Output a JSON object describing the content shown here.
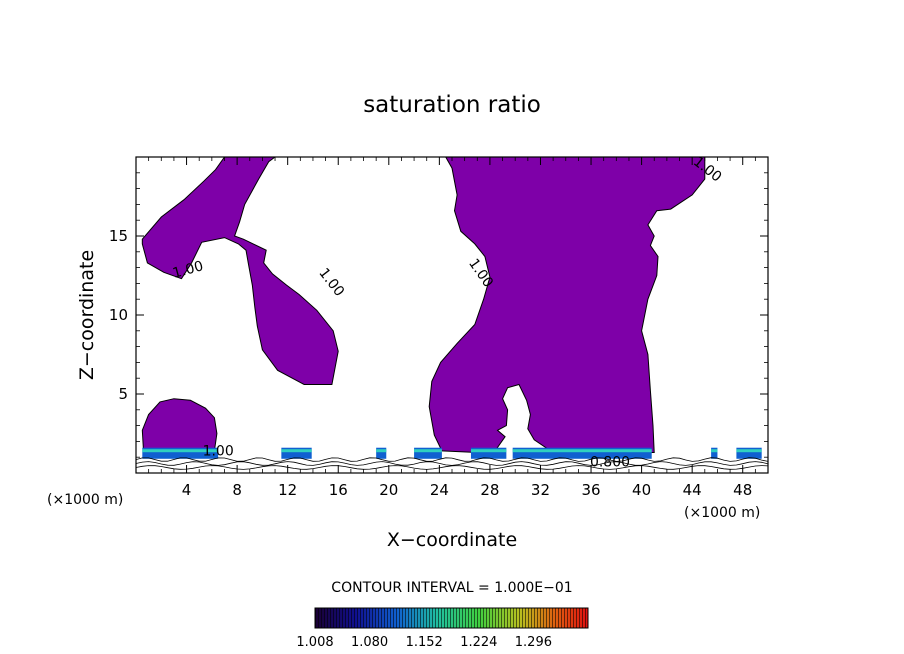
{
  "chart_data": {
    "type": "heatmap",
    "title": "saturation ratio",
    "xlabel": "X−coordinate",
    "ylabel": "Z−coordinate",
    "x_unit": "(×1000 m)",
    "y_unit": "(×1000 m)",
    "xlim": [
      0,
      50
    ],
    "ylim": [
      0,
      20
    ],
    "x_ticks": [
      "4",
      "8",
      "12",
      "16",
      "20",
      "24",
      "28",
      "32",
      "36",
      "40",
      "44",
      "48"
    ],
    "y_ticks": [
      "5",
      "10",
      "15"
    ],
    "contour_interval_text": "CONTOUR INTERVAL = 1.000E−01",
    "contour_labels": [
      "1.00",
      "1.00",
      "1.00",
      "1.00",
      "1.00",
      "0.800"
    ],
    "colorbar": {
      "labels": [
        "1.008",
        "1.080",
        "1.152",
        "1.224",
        "1.296"
      ],
      "min": 1.008,
      "max": 1.296
    },
    "region_color": "#7e00a8",
    "cloud_regions": [
      {
        "name": "upper-left",
        "outline": [
          [
            0.5,
            14.8
          ],
          [
            2,
            16.2
          ],
          [
            3.8,
            17.3
          ],
          [
            5.4,
            18.5
          ],
          [
            6.3,
            19.2
          ],
          [
            7,
            20
          ],
          [
            11,
            20
          ],
          [
            10.5,
            19.7
          ],
          [
            9.7,
            18.6
          ],
          [
            8.6,
            17.0
          ],
          [
            8.2,
            15.9
          ],
          [
            7.8,
            15.0
          ],
          [
            8.5,
            14.8
          ],
          [
            10.3,
            14.1
          ],
          [
            10.1,
            13.3
          ],
          [
            10.8,
            12.6
          ],
          [
            11.9,
            11.9
          ],
          [
            12.9,
            11.3
          ],
          [
            14.3,
            10.3
          ],
          [
            15.6,
            9.0
          ],
          [
            16.0,
            7.7
          ],
          [
            15.5,
            5.6
          ],
          [
            13.3,
            5.6
          ],
          [
            11.2,
            6.5
          ],
          [
            10.0,
            7.8
          ],
          [
            9.6,
            9.3
          ],
          [
            9.4,
            10.5
          ],
          [
            9.2,
            11.9
          ],
          [
            8.9,
            13.2
          ],
          [
            8.7,
            14.1
          ],
          [
            8.1,
            14.5
          ],
          [
            7.0,
            14.9
          ],
          [
            5.2,
            14.6
          ],
          [
            4.4,
            13.3
          ],
          [
            3.6,
            12.3
          ],
          [
            2.2,
            12.7
          ],
          [
            0.9,
            13.3
          ],
          [
            0.5,
            14.5
          ]
        ]
      },
      {
        "name": "lower-left",
        "outline": [
          [
            0.6,
            1.3
          ],
          [
            0.5,
            2.7
          ],
          [
            1.0,
            3.7
          ],
          [
            1.9,
            4.5
          ],
          [
            3.0,
            4.7
          ],
          [
            4.3,
            4.6
          ],
          [
            5.5,
            4.1
          ],
          [
            6.2,
            3.5
          ],
          [
            6.4,
            2.5
          ],
          [
            6.2,
            1.4
          ],
          [
            5.0,
            1.1
          ],
          [
            3.0,
            1.1
          ]
        ]
      },
      {
        "name": "main-column",
        "outline": [
          [
            24.5,
            20
          ],
          [
            25.0,
            19.3
          ],
          [
            25.4,
            17.6
          ],
          [
            25.2,
            16.6
          ],
          [
            25.7,
            15.3
          ],
          [
            26.8,
            14.5
          ],
          [
            27.6,
            13.7
          ],
          [
            28.0,
            12.4
          ],
          [
            27.5,
            11.0
          ],
          [
            26.8,
            9.4
          ],
          [
            25.4,
            8.2
          ],
          [
            24.1,
            7.0
          ],
          [
            23.4,
            5.8
          ],
          [
            23.2,
            4.2
          ],
          [
            23.6,
            2.4
          ],
          [
            24.2,
            1.4
          ],
          [
            27.0,
            1.3
          ],
          [
            28.5,
            1.5
          ],
          [
            29.2,
            2.3
          ],
          [
            28.6,
            2.7
          ],
          [
            29.3,
            3.0
          ],
          [
            29.4,
            4.0
          ],
          [
            29.0,
            4.7
          ],
          [
            29.4,
            5.4
          ],
          [
            30.3,
            5.6
          ],
          [
            30.9,
            4.6
          ],
          [
            31.2,
            3.7
          ],
          [
            31.0,
            2.8
          ],
          [
            31.5,
            2.1
          ],
          [
            33,
            1.3
          ],
          [
            38,
            1.3
          ],
          [
            41,
            1.3
          ],
          [
            40.9,
            3.0
          ],
          [
            40.7,
            5.2
          ],
          [
            40.5,
            7.5
          ],
          [
            40.0,
            9.0
          ],
          [
            40.5,
            11.0
          ],
          [
            41.2,
            12.5
          ],
          [
            41.3,
            13.7
          ],
          [
            40.7,
            14.4
          ],
          [
            41.0,
            15.0
          ],
          [
            40.5,
            15.7
          ],
          [
            41.2,
            16.6
          ],
          [
            42.3,
            16.7
          ],
          [
            44.0,
            17.6
          ],
          [
            45.0,
            18.6
          ],
          [
            45.0,
            20
          ]
        ]
      }
    ],
    "cloud_base_segments": [
      [
        0.5,
        6.5
      ],
      [
        11.5,
        13.9
      ],
      [
        19,
        19.8
      ],
      [
        22,
        24.2
      ],
      [
        26.5,
        29.3
      ],
      [
        29.8,
        40.8
      ],
      [
        45.5,
        46.0
      ],
      [
        47.5,
        49.5
      ]
    ]
  }
}
